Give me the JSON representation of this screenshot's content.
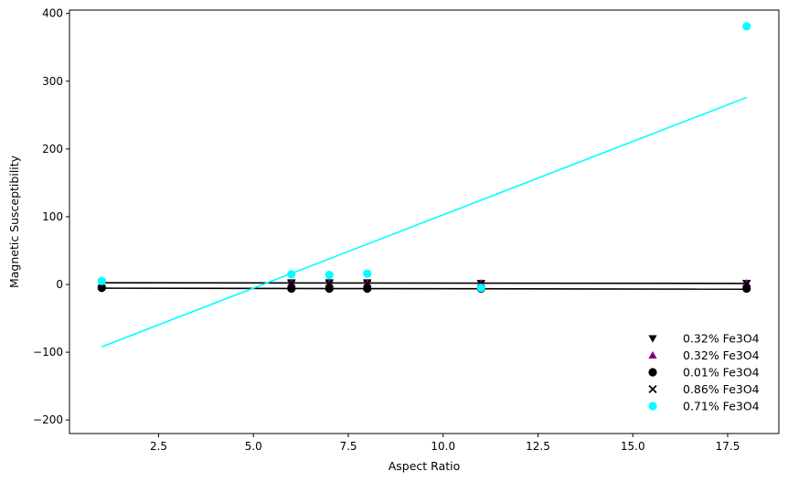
{
  "chart_data": {
    "type": "scatter",
    "xlabel": "Aspect Ratio",
    "ylabel": "Magnetic Susceptibility",
    "xlim": [
      0.15,
      18.85
    ],
    "ylim": [
      -220,
      405
    ],
    "xticks": [
      2.5,
      5.0,
      7.5,
      10.0,
      12.5,
      15.0,
      17.5
    ],
    "xtick_labels": [
      "2.5",
      "5.0",
      "7.5",
      "10.0",
      "12.5",
      "15.0",
      "17.5"
    ],
    "yticks": [
      -200,
      -100,
      0,
      100,
      200,
      300,
      400
    ],
    "ytick_labels": [
      "−200",
      "−100",
      "0",
      "100",
      "200",
      "300",
      "400"
    ],
    "grid": false,
    "legend_position": "lower-right",
    "series": [
      {
        "name": "0.32% Fe3O4",
        "marker": "triangle-down",
        "color": "#000000",
        "x": [
          1,
          6,
          7,
          8,
          11,
          18
        ],
        "y": [
          3,
          3,
          3,
          3,
          2,
          2
        ]
      },
      {
        "name": "0.32% Fe3O4",
        "marker": "triangle-up",
        "color": "#800080",
        "x": [
          1,
          6,
          7,
          8,
          11,
          18
        ],
        "y": [
          2,
          2,
          2,
          2,
          2,
          2
        ]
      },
      {
        "name": "0.01% Fe3O4",
        "marker": "circle",
        "color": "#000000",
        "x": [
          1,
          6,
          7,
          8,
          11,
          18
        ],
        "y": [
          -5,
          -6,
          -6,
          -6,
          -6,
          -6
        ]
      },
      {
        "name": "0.86% Fe3O4",
        "marker": "x",
        "color": "#000000",
        "x": [
          1,
          6,
          7,
          8,
          11,
          18
        ],
        "y": [
          1,
          1,
          1,
          1,
          1,
          1
        ]
      },
      {
        "name": "0.71% Fe3O4",
        "marker": "circle",
        "color": "#00ffff",
        "x": [
          1,
          6,
          7,
          8,
          11,
          18
        ],
        "y": [
          5,
          15,
          14,
          16,
          -5,
          381
        ]
      }
    ],
    "fit_lines": [
      {
        "color": "#000000",
        "x": [
          1,
          18
        ],
        "y": [
          2.5,
          1.5
        ]
      },
      {
        "color": "#000000",
        "x": [
          1,
          18
        ],
        "y": [
          -5.5,
          -7.0
        ]
      },
      {
        "color": "#00ffff",
        "x": [
          1,
          18
        ],
        "y": [
          -92,
          276
        ]
      }
    ]
  }
}
